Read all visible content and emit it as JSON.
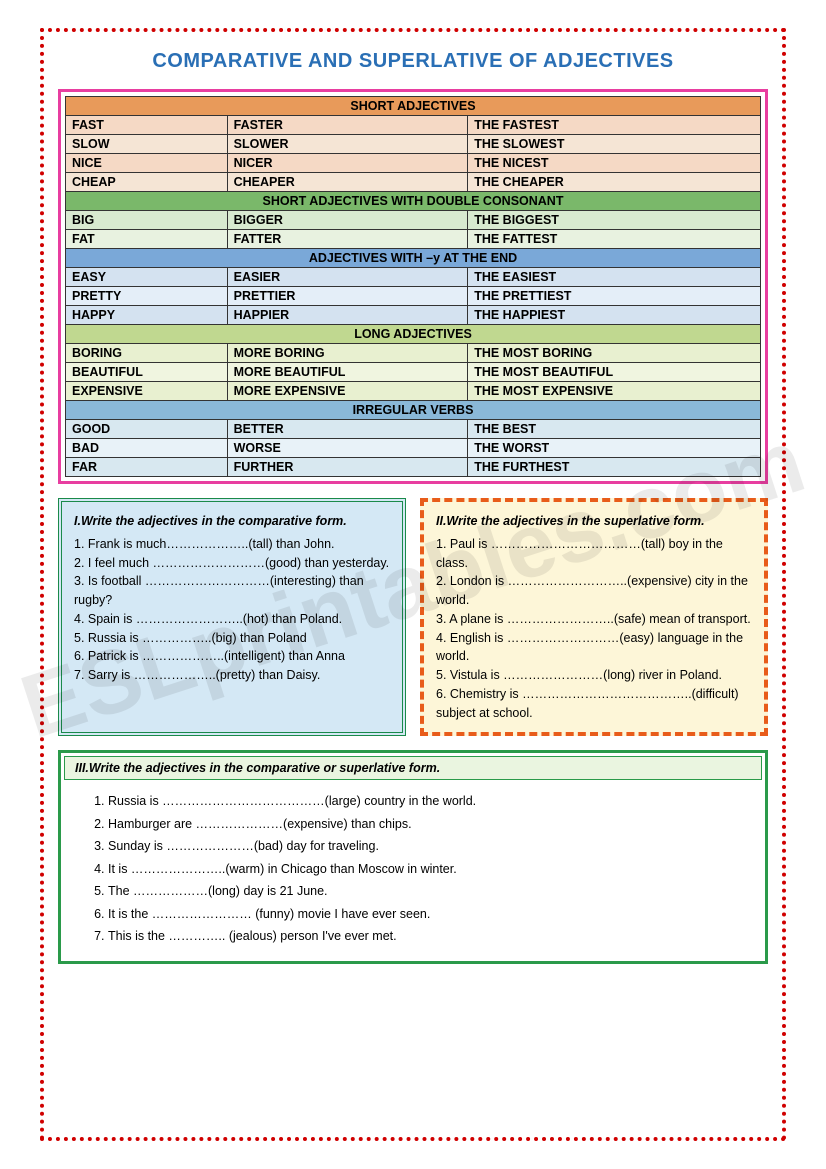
{
  "title": "COMPARATIVE AND SUPERLATIVE OF ADJECTIVES",
  "watermark": "ESLprintables.com",
  "colors": {
    "page_border": "#d00000",
    "title_color": "#2a6fb5",
    "table_border": "#e83ea0",
    "ex1_bg": "#d4e8f5",
    "ex1_border": "#1a8a4a",
    "ex2_bg": "#fdf6d8",
    "ex2_border": "#e85c1a",
    "ex3_border": "#2a9a4a",
    "ex3_title_bg": "#eaf5e0"
  },
  "sections": [
    {
      "header": "SHORT ADJECTIVES",
      "header_bg": "#e89a5a",
      "row_bgs": [
        "#f5d9c5",
        "#f5e5d5",
        "#f5d9c5",
        "#f5e5d5"
      ],
      "rows": [
        [
          "FAST",
          "FASTER",
          "THE FASTEST"
        ],
        [
          "SLOW",
          "SLOWER",
          "THE SLOWEST"
        ],
        [
          "NICE",
          "NICER",
          "THE NICEST"
        ],
        [
          "CHEAP",
          "CHEAPER",
          "THE CHEAPER"
        ]
      ]
    },
    {
      "header": "SHORT ADJECTIVES WITH DOUBLE CONSONANT",
      "header_bg": "#7ab86a",
      "row_bgs": [
        "#d8ead0",
        "#e8f2e0"
      ],
      "rows": [
        [
          "BIG",
          "BIGGER",
          "THE BIGGEST"
        ],
        [
          "FAT",
          "FATTER",
          "THE FATTEST"
        ]
      ]
    },
    {
      "header": "ADJECTIVES WITH –y AT THE END",
      "header_bg": "#7aa8d8",
      "row_bgs": [
        "#d4e2f0",
        "#e4eef8",
        "#d4e2f0"
      ],
      "rows": [
        [
          "EASY",
          "EASIER",
          "THE EASIEST"
        ],
        [
          "PRETTY",
          "PRETTIER",
          "THE PRETTIEST"
        ],
        [
          "HAPPY",
          "HAPPIER",
          "THE HAPPIEST"
        ]
      ]
    },
    {
      "header": "LONG ADJECTIVES",
      "header_bg": "#c0d890",
      "row_bgs": [
        "#e8f0d0",
        "#f0f5e0",
        "#e8f0d0"
      ],
      "rows": [
        [
          "BORING",
          "MORE BORING",
          "THE MOST BORING"
        ],
        [
          "BEAUTIFUL",
          "MORE BEAUTIFUL",
          "THE MOST BEAUTIFUL"
        ],
        [
          "EXPENSIVE",
          "MORE EXPENSIVE",
          "THE MOST EXPENSIVE"
        ]
      ]
    },
    {
      "header": "IRREGULAR VERBS",
      "header_bg": "#8ab8d8",
      "row_bgs": [
        "#d8e8f0",
        "#e8f2f8",
        "#d8e8f0"
      ],
      "rows": [
        [
          "GOOD",
          "BETTER",
          "THE BEST"
        ],
        [
          "BAD",
          "WORSE",
          "THE WORST"
        ],
        [
          "FAR",
          "FURTHER",
          "THE FURTHEST"
        ]
      ]
    }
  ],
  "ex1": {
    "title": "I.Write the adjectives in the comparative form.",
    "items": [
      "1. Frank is much………………..(tall) than John.",
      "2. I feel much ………………………(good) than yesterday.",
      "3. Is football …………………………(interesting) than rugby?",
      "4. Spain is ……………………..(hot) than Poland.",
      "5. Russia is ……………..(big) than Poland",
      "6. Patrick is ………………..(intelligent) than Anna",
      "7. Sarry is ………………..(pretty) than Daisy."
    ]
  },
  "ex2": {
    "title": "II.Write the adjectives in the superlative form.",
    "items": [
      "1. Paul is ………………………………(tall) boy in the class.",
      "2. London is ………………………..(expensive) city in the world.",
      "3. A plane is ……………………..(safe) mean of transport.",
      "4. English is ………………………(easy) language in the world.",
      "5. Vistula is ……………………(long) river in Poland.",
      "6. Chemistry is …………………………………..(difficult) subject at school."
    ]
  },
  "ex3": {
    "title": "III.Write the adjectives in the comparative or superlative form.",
    "items": [
      "Russia is …………………………………(large) country in the world.",
      "Hamburger are …………………(expensive) than chips.",
      "Sunday is …………………(bad) day for traveling.",
      "It is …………………..(warm) in Chicago than Moscow in winter.",
      "The ………………(long) day is 21 June.",
      "It is the …………………… (funny) movie I have ever seen.",
      "This is the ………….. (jealous) person I've ever met."
    ]
  }
}
